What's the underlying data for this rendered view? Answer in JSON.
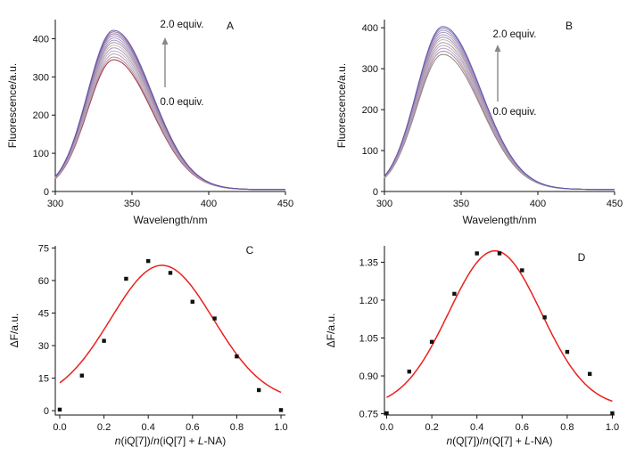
{
  "chart_data": [
    {
      "id": "A",
      "type": "line",
      "panel_label": "A",
      "xlabel": "Wavelength/nm",
      "ylabel": "Fluorescence/a.u.",
      "xlim": [
        300,
        450
      ],
      "ylim": [
        0,
        450
      ],
      "xticks": [
        "300",
        "350",
        "400",
        "450"
      ],
      "yticks": [
        "0",
        "100",
        "200",
        "300",
        "400"
      ],
      "peak_x": 338,
      "baseline": 5,
      "start_value": 12,
      "peak_values": [
        345,
        352,
        360,
        368,
        376,
        383,
        390,
        396,
        402,
        408,
        413,
        418,
        422
      ],
      "series_colors": [
        "#8a1e2a",
        "#b07a8e",
        "#a89ac0",
        "#c0a0a6",
        "#9a8ec6",
        "#c8b088",
        "#8e88c4",
        "#b28aa6",
        "#9690c8",
        "#a684a8",
        "#7a72b8",
        "#965a80",
        "#5a50a6"
      ],
      "annotations": {
        "top": "2.0 equiv.",
        "bottom": "0.0 equiv."
      },
      "arrow_color": "#888888"
    },
    {
      "id": "B",
      "type": "line",
      "panel_label": "B",
      "xlabel": "Wavelength/nm",
      "ylabel": "Fluorescence/a.u.",
      "xlim": [
        300,
        450
      ],
      "ylim": [
        0,
        420
      ],
      "xticks": [
        "300",
        "350",
        "400",
        "450"
      ],
      "yticks": [
        "0",
        "100",
        "200",
        "300",
        "400"
      ],
      "peak_x": 338,
      "baseline": 5,
      "start_value": 10,
      "peak_values": [
        335,
        343,
        350,
        357,
        364,
        371,
        377,
        383,
        389,
        394,
        399,
        403
      ],
      "series_colors": [
        "#7a7a7a",
        "#b07a8e",
        "#a89ac0",
        "#c0a0a6",
        "#9a8ec6",
        "#c8b088",
        "#8e88c4",
        "#b28aa6",
        "#9690c8",
        "#a684a8",
        "#7a72b8",
        "#5a50a6"
      ],
      "annotations": {
        "top": "2.0 equiv.",
        "bottom": "0.0 equiv."
      },
      "arrow_color": "#888888"
    },
    {
      "id": "C",
      "type": "scatter",
      "panel_label": "C",
      "xlabel_parts": [
        "n",
        "(iQ[7])/",
        "n",
        "(iQ[7] + ",
        "L",
        "-NA)"
      ],
      "ylabel_parts": [
        "Δ",
        "F",
        "/a.u."
      ],
      "xlim": [
        -0.02,
        1.02
      ],
      "ylim": [
        -2,
        76
      ],
      "xticks": [
        "0.0",
        "0.2",
        "0.4",
        "0.6",
        "0.8",
        "1.0"
      ],
      "yticks": [
        "0",
        "15",
        "30",
        "45",
        "60",
        "75"
      ],
      "x": [
        0.0,
        0.1,
        0.2,
        0.3,
        0.4,
        0.5,
        0.6,
        0.7,
        0.8,
        0.9,
        1.0
      ],
      "y": [
        0.5,
        16.2,
        32.2,
        60.8,
        69.0,
        63.5,
        50.2,
        42.5,
        25.0,
        9.5,
        0.3
      ],
      "fit": {
        "amplitude": 62.8,
        "center": 0.462,
        "width": 0.232,
        "offset": 4.2
      },
      "fit_color": "#e8211f"
    },
    {
      "id": "D",
      "type": "scatter",
      "panel_label": "D",
      "xlabel_parts": [
        "n",
        "(Q[7])/",
        "n",
        "(Q[7] + ",
        "L",
        "-NA)"
      ],
      "ylabel_parts": [
        "Δ",
        "F",
        "/a.u."
      ],
      "xlim": [
        -0.01,
        1.01
      ],
      "ylim": [
        0.745,
        1.415
      ],
      "xticks": [
        "0.0",
        "0.2",
        "0.4",
        "0.6",
        "0.8",
        "1.0"
      ],
      "yticks": [
        "0.75",
        "0.90",
        "1.05",
        "1.20",
        "1.35"
      ],
      "x": [
        0.0,
        0.1,
        0.2,
        0.3,
        0.4,
        0.5,
        0.6,
        0.7,
        0.8,
        0.9,
        1.0
      ],
      "y": [
        0.752,
        0.917,
        1.035,
        1.225,
        1.385,
        1.385,
        1.318,
        1.132,
        0.995,
        0.908,
        0.752
      ],
      "fit": {
        "amplitude": 0.62,
        "center": 0.48,
        "width": 0.205,
        "offset": 0.775
      },
      "fit_color": "#e8211f"
    }
  ]
}
